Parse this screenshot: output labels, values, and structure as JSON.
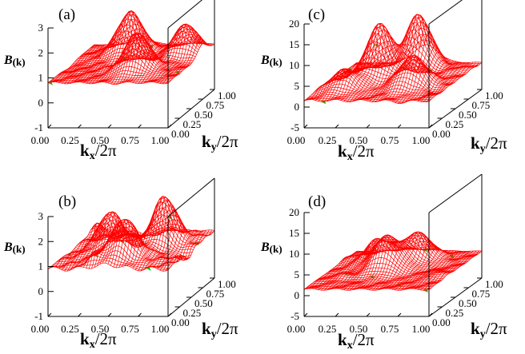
{
  "figure": {
    "panels": [
      "a",
      "b",
      "c",
      "d"
    ]
  },
  "chart_data": [
    {
      "type": "surface3d",
      "panel_label": "(a)",
      "zlabel_main": "B",
      "zlabel_sub": "(k)",
      "xlabel_main": "k",
      "xlabel_sub": "x",
      "xlabel_rest": "/2π",
      "ylabel_main": "k",
      "ylabel_sub": "y",
      "ylabel_rest": "/2π",
      "x_ticks": [
        "0.00",
        "0.25",
        "0.50",
        "0.75",
        "1.00"
      ],
      "y_ticks": [
        "0.00",
        "0.25",
        "0.50",
        "0.75",
        "1.00"
      ],
      "z_ticks": [
        "-1",
        "0",
        "1",
        "2",
        "3"
      ],
      "z_tick_values": [
        -1,
        0,
        1,
        2,
        3
      ],
      "zlim": [
        -1,
        3
      ],
      "xlim": [
        0,
        1
      ],
      "ylim": [
        0,
        1
      ],
      "surface": {
        "base": 0.8,
        "amp": 1.7,
        "peaks": [
          [
            0.38,
            0.78,
            1.0
          ],
          [
            0.62,
            0.32,
            0.9
          ],
          [
            0.85,
            0.75,
            0.7
          ]
        ],
        "noise": 0.15,
        "seed": 3
      },
      "colors": {
        "front": "#ff0000",
        "back": "#00cc00",
        "grid": "#000000"
      }
    },
    {
      "type": "surface3d",
      "panel_label": "(b)",
      "zlabel_main": "B",
      "zlabel_sub": "(k)",
      "xlabel_main": "k",
      "xlabel_sub": "x",
      "xlabel_rest": "/2π",
      "ylabel_main": "k",
      "ylabel_sub": "y",
      "ylabel_rest": "/2π",
      "x_ticks": [
        "0.00",
        "0.25",
        "0.50",
        "0.75",
        "1.00"
      ],
      "y_ticks": [
        "0.00",
        "0.25",
        "0.50",
        "0.75",
        "1.00"
      ],
      "z_ticks": [
        "-1",
        "0",
        "1",
        "2",
        "3"
      ],
      "z_tick_values": [
        -1,
        0,
        1,
        2,
        3
      ],
      "zlim": [
        -1,
        3
      ],
      "xlim": [
        0,
        1
      ],
      "ylim": [
        0,
        1
      ],
      "surface": {
        "base": 0.9,
        "amp": 1.8,
        "peaks": [
          [
            0.3,
            0.55,
            0.8
          ],
          [
            0.7,
            0.7,
            1.0
          ],
          [
            0.55,
            0.25,
            0.9
          ]
        ],
        "noise": 0.35,
        "seed": 7
      },
      "colors": {
        "front": "#ff0000",
        "back": "#00cc00",
        "grid": "#000000"
      }
    },
    {
      "type": "surface3d",
      "panel_label": "(c)",
      "zlabel_main": "B",
      "zlabel_sub": "(k)",
      "xlabel_main": "k",
      "xlabel_sub": "x",
      "xlabel_rest": "/2π",
      "ylabel_main": "k",
      "ylabel_sub": "y",
      "ylabel_rest": "/2π",
      "x_ticks": [
        "0.00",
        "0.25",
        "0.50",
        "0.75",
        "1.00"
      ],
      "y_ticks": [
        "0.00",
        "0.25",
        "0.50",
        "0.75",
        "1.00"
      ],
      "z_ticks": [
        "-5",
        "0",
        "5",
        "10",
        "15",
        "20"
      ],
      "z_tick_values": [
        -5,
        0,
        5,
        10,
        15,
        20
      ],
      "zlim": [
        -5,
        20
      ],
      "xlim": [
        0,
        1
      ],
      "ylim": [
        0,
        1
      ],
      "surface": {
        "base": 1.5,
        "amp": 6,
        "peaks": [
          [
            0.35,
            0.6,
            2.0
          ],
          [
            0.55,
            0.85,
            2.2
          ],
          [
            0.7,
            0.4,
            1.2
          ],
          [
            0.2,
            0.3,
            0.8
          ]
        ],
        "noise": 1.2,
        "seed": 11
      },
      "colors": {
        "front": "#ff0000",
        "back": "#00cc00",
        "grid": "#000000"
      }
    },
    {
      "type": "surface3d",
      "panel_label": "(d)",
      "zlabel_main": "B",
      "zlabel_sub": "(k)",
      "xlabel_main": "k",
      "xlabel_sub": "x",
      "xlabel_rest": "/2π",
      "ylabel_main": "k",
      "ylabel_sub": "y",
      "ylabel_rest": "/2π",
      "x_ticks": [
        "0.00",
        "0.25",
        "0.50",
        "0.75",
        "1.00"
      ],
      "y_ticks": [
        "0.00",
        "0.25",
        "0.50",
        "0.75",
        "1.00"
      ],
      "z_ticks": [
        "-5",
        "0",
        "5",
        "10",
        "15",
        "20"
      ],
      "z_tick_values": [
        -5,
        0,
        5,
        10,
        15,
        20
      ],
      "zlim": [
        -5,
        20
      ],
      "xlim": [
        0,
        1
      ],
      "ylim": [
        0,
        1
      ],
      "surface": {
        "base": 1.5,
        "amp": 5,
        "peaks": [
          [
            0.45,
            0.5,
            1.6
          ],
          [
            0.6,
            0.75,
            1.3
          ],
          [
            0.3,
            0.7,
            1.0
          ]
        ],
        "noise": 0.9,
        "seed": 19
      },
      "colors": {
        "front": "#ff0000",
        "back": "#00cc00",
        "grid": "#000000"
      }
    }
  ]
}
